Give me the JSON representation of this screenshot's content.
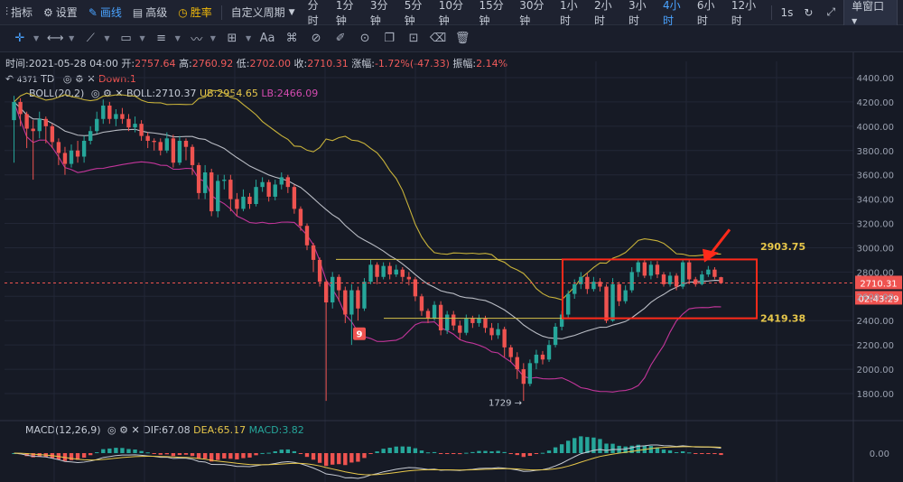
{
  "toolbar": {
    "indicator_label": "指标",
    "settings_label": "设置",
    "draw_label": "画线",
    "advanced_label": "高级",
    "winrate_label": "胜率",
    "custom_period_label": "自定义周期",
    "periods": [
      "分时",
      "1分钟",
      "3分钟",
      "5分钟",
      "10分钟",
      "15分钟",
      "30分钟",
      "1小时",
      "2小时",
      "3小时",
      "4小时",
      "6小时",
      "12小时"
    ],
    "active_period": "4小时",
    "interval_label": "1s",
    "window_label": "单窗口"
  },
  "ohlc": {
    "time_label": "时间:",
    "time": "2021-05-28 04:00",
    "open_label": "开:",
    "open": "2757.64",
    "high_label": "高:",
    "high": "2760.92",
    "low_label": "低:",
    "low": "2702.00",
    "close_label": "收:",
    "close": "2710.31",
    "change_label": "涨幅:",
    "change": "-1.72%(-47.33)",
    "amp_label": "振幅:",
    "amp": "2.14%"
  },
  "td": {
    "left_value": "4371",
    "label": "TD",
    "down_label": "Down:1"
  },
  "boll": {
    "name": "BOLL(20,2)",
    "mid_label": "BOLL:",
    "mid": "2710.37",
    "ub_label": "UB:",
    "ub": "2954.65",
    "lb_label": "LB:",
    "lb": "2466.09"
  },
  "macd": {
    "name": "MACD(12,26,9)",
    "dif_label": "DIF:",
    "dif": "67.08",
    "dea_label": "DEA:",
    "dea": "65.17",
    "macd_label": "MACD:",
    "macd": "3.82",
    "zero_tick": "0.00"
  },
  "annotations": {
    "td_nine": "9",
    "low_marker": "1729 →",
    "upper_level": "2903.75",
    "lower_level": "2419.38",
    "price_tag": "2710.31",
    "countdown": "02:43:29"
  },
  "colors": {
    "up": "#26a69a",
    "down": "#ef5350",
    "boll_ub": "#c8b23a",
    "boll_mid": "#b9bcc4",
    "boll_lb": "#c2359a",
    "box": "#ff2a1a",
    "arrow": "#ff2a1a"
  },
  "chart_data": {
    "type": "candlestick",
    "y_ticks": [
      1800,
      2000,
      2200,
      2400,
      2600,
      2800,
      3000,
      3200,
      3400,
      3600,
      3800,
      4000,
      4200,
      4400
    ],
    "ylim": [
      1600,
      4450
    ],
    "candles": [
      [
        4050,
        4200,
        4250,
        3700
      ],
      [
        4200,
        4100,
        4230,
        4000
      ],
      [
        4100,
        3980,
        4120,
        3820
      ],
      [
        3980,
        3960,
        4050,
        3560
      ],
      [
        3960,
        4060,
        4120,
        3900
      ],
      [
        4060,
        4000,
        4080,
        3860
      ],
      [
        4000,
        3870,
        4020,
        3820
      ],
      [
        3870,
        3780,
        3900,
        3680
      ],
      [
        3780,
        3690,
        3830,
        3600
      ],
      [
        3690,
        3800,
        3850,
        3660
      ],
      [
        3800,
        3750,
        3880,
        3700
      ],
      [
        3750,
        3880,
        3920,
        3700
      ],
      [
        3880,
        3960,
        4000,
        3850
      ],
      [
        3960,
        4060,
        4120,
        3940
      ],
      [
        4060,
        4170,
        4220,
        4020
      ],
      [
        4170,
        4060,
        4200,
        4020
      ],
      [
        4060,
        4100,
        4140,
        4000
      ],
      [
        4100,
        4060,
        4150,
        4020
      ],
      [
        4060,
        3990,
        4100,
        3960
      ],
      [
        3990,
        4020,
        4080,
        3950
      ],
      [
        4020,
        3920,
        4050,
        3880
      ],
      [
        3920,
        3880,
        3950,
        3820
      ],
      [
        3880,
        3870,
        3900,
        3800
      ],
      [
        3870,
        3800,
        3900,
        3760
      ],
      [
        3800,
        3900,
        3950,
        3780
      ],
      [
        3900,
        3700,
        3930,
        3660
      ],
      [
        3700,
        3880,
        3920,
        3680
      ],
      [
        3880,
        3830,
        3900,
        3720
      ],
      [
        3830,
        3680,
        3850,
        3600
      ],
      [
        3680,
        3450,
        3700,
        3400
      ],
      [
        3450,
        3620,
        3680,
        3400
      ],
      [
        3620,
        3300,
        3650,
        3260
      ],
      [
        3300,
        3550,
        3600,
        3250
      ],
      [
        3550,
        3560,
        3600,
        3480
      ],
      [
        3560,
        3400,
        3600,
        3300
      ],
      [
        3400,
        3320,
        3450,
        3260
      ],
      [
        3320,
        3420,
        3480,
        3300
      ],
      [
        3420,
        3360,
        3450,
        3320
      ],
      [
        3360,
        3500,
        3560,
        3340
      ],
      [
        3500,
        3540,
        3580,
        3460
      ],
      [
        3540,
        3420,
        3560,
        3380
      ],
      [
        3420,
        3520,
        3560,
        3390
      ],
      [
        3520,
        3580,
        3620,
        3480
      ],
      [
        3580,
        3500,
        3600,
        3450
      ],
      [
        3500,
        3320,
        3520,
        3280
      ],
      [
        3320,
        3180,
        3340,
        3140
      ],
      [
        3180,
        3020,
        3200,
        2980
      ],
      [
        3020,
        2900,
        3040,
        2800
      ],
      [
        2900,
        2720,
        2920,
        2680
      ],
      [
        2720,
        2550,
        2740,
        1740
      ],
      [
        2550,
        2760,
        2800,
        2500
      ],
      [
        2760,
        2650,
        2780,
        2560
      ],
      [
        2650,
        2450,
        2680,
        2380
      ],
      [
        2450,
        2650,
        2700,
        2200
      ],
      [
        2650,
        2500,
        2680,
        2400
      ],
      [
        2500,
        2720,
        2750,
        2480
      ],
      [
        2720,
        2860,
        2900,
        2700
      ],
      [
        2860,
        2760,
        2880,
        2700
      ],
      [
        2760,
        2850,
        2880,
        2740
      ],
      [
        2850,
        2780,
        2880,
        2740
      ],
      [
        2780,
        2820,
        2860,
        2760
      ],
      [
        2820,
        2760,
        2840,
        2720
      ],
      [
        2760,
        2740,
        2800,
        2690
      ],
      [
        2740,
        2600,
        2760,
        2560
      ],
      [
        2600,
        2480,
        2620,
        2440
      ],
      [
        2480,
        2420,
        2500,
        2380
      ],
      [
        2420,
        2530,
        2560,
        2400
      ],
      [
        2530,
        2320,
        2560,
        2280
      ],
      [
        2320,
        2450,
        2480,
        2290
      ],
      [
        2450,
        2360,
        2480,
        2320
      ],
      [
        2360,
        2300,
        2400,
        2240
      ],
      [
        2300,
        2420,
        2450,
        2280
      ],
      [
        2420,
        2380,
        2440,
        2340
      ],
      [
        2380,
        2420,
        2450,
        2350
      ],
      [
        2420,
        2340,
        2440,
        2300
      ],
      [
        2340,
        2280,
        2380,
        2240
      ],
      [
        2280,
        2330,
        2380,
        2250
      ],
      [
        2330,
        2180,
        2350,
        2100
      ],
      [
        2180,
        2100,
        2200,
        2060
      ],
      [
        2100,
        2000,
        2140,
        1920
      ],
      [
        2000,
        1880,
        2050,
        1740
      ],
      [
        1880,
        2050,
        2080,
        1860
      ],
      [
        2050,
        2120,
        2160,
        2000
      ],
      [
        2120,
        2080,
        2150,
        2040
      ],
      [
        2080,
        2200,
        2240,
        2060
      ],
      [
        2200,
        2350,
        2380,
        2180
      ],
      [
        2350,
        2450,
        2480,
        2320
      ],
      [
        2450,
        2620,
        2650,
        2420
      ],
      [
        2620,
        2700,
        2740,
        2580
      ],
      [
        2700,
        2760,
        2800,
        2660
      ],
      [
        2760,
        2660,
        2790,
        2620
      ],
      [
        2660,
        2720,
        2760,
        2640
      ],
      [
        2720,
        2680,
        2750,
        2640
      ],
      [
        2680,
        2400,
        2700,
        2380
      ],
      [
        2400,
        2700,
        2750,
        2390
      ],
      [
        2700,
        2560,
        2720,
        2520
      ],
      [
        2560,
        2650,
        2690,
        2540
      ],
      [
        2650,
        2800,
        2840,
        2630
      ],
      [
        2800,
        2880,
        2900,
        2760
      ],
      [
        2880,
        2770,
        2900,
        2750
      ],
      [
        2770,
        2860,
        2890,
        2740
      ],
      [
        2860,
        2780,
        2890,
        2750
      ],
      [
        2780,
        2700,
        2800,
        2680
      ],
      [
        2700,
        2770,
        2800,
        2680
      ],
      [
        2770,
        2680,
        2790,
        2650
      ],
      [
        2680,
        2880,
        2900,
        2660
      ],
      [
        2880,
        2740,
        2900,
        2700
      ],
      [
        2740,
        2700,
        2760,
        2680
      ],
      [
        2700,
        2780,
        2810,
        2690
      ],
      [
        2780,
        2820,
        2850,
        2760
      ],
      [
        2820,
        2760,
        2840,
        2740
      ],
      [
        2757.64,
        2710.31,
        2760.92,
        2702
      ]
    ]
  }
}
